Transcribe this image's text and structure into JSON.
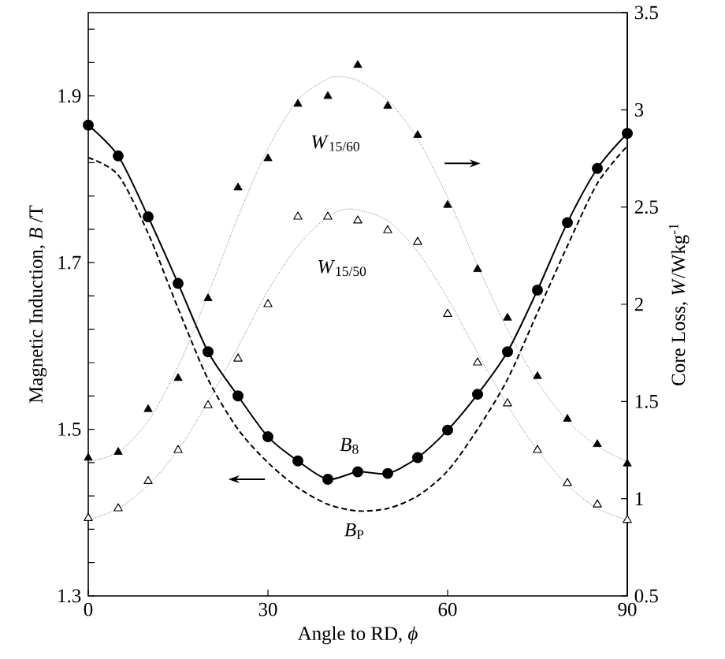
{
  "chart_data": {
    "type": "line",
    "xlabel": "Angle to RD, *ϕ*",
    "ylabel": "Magnetic Induction, *B* /T",
    "y2label": "Core Loss, *W*/Wkg$^{-1}$",
    "x": [
      0,
      5,
      10,
      15,
      20,
      25,
      30,
      35,
      40,
      45,
      50,
      55,
      60,
      65,
      70,
      75,
      80,
      85,
      90
    ],
    "xlim": [
      0,
      90
    ],
    "xticks": [
      0,
      30,
      60,
      90
    ],
    "ylim": [
      1.3,
      2.0
    ],
    "yticks": [
      1.3,
      {
        "value": 1.34,
        "label": null
      },
      {
        "value": 1.38,
        "label": null
      },
      {
        "value": 1.42,
        "label": null
      },
      {
        "value": 1.46,
        "label": null
      },
      1.5,
      {
        "value": 1.54,
        "label": null
      },
      {
        "value": 1.58,
        "label": null
      },
      {
        "value": 1.62,
        "label": null
      },
      {
        "value": 1.66,
        "label": null
      },
      1.7,
      {
        "value": 1.74,
        "label": null
      },
      {
        "value": 1.78,
        "label": null
      },
      {
        "value": 1.82,
        "label": null
      },
      {
        "value": 1.86,
        "label": null
      },
      1.9,
      {
        "value": 1.94,
        "label": null
      },
      {
        "value": 1.98,
        "label": null
      }
    ],
    "y2lim": [
      0.5,
      3.5
    ],
    "y2ticks": [
      0.5,
      1,
      1.5,
      2,
      2.5,
      3,
      3.5
    ],
    "series": [
      {
        "color": "#000000",
        "marker": "circle",
        "line_style": "solid",
        "values": [
          1.865,
          1.828,
          1.755,
          1.675,
          1.593,
          1.54,
          1.491,
          1.462,
          1.44,
          1.449,
          1.447,
          1.466,
          1.499,
          1.542,
          1.593,
          1.667,
          1.748,
          1.813,
          1.855
        ]
      },
      {
        "color": "#000000",
        "marker": "none",
        "line_style": "dashed",
        "values": [
          1.826,
          1.805,
          1.735,
          1.645,
          1.56,
          1.5,
          1.46,
          1.43,
          1.41,
          1.402,
          1.405,
          1.42,
          1.45,
          1.5,
          1.56,
          1.64,
          1.72,
          1.795,
          1.84
        ]
      },
      {
        "type": "scatter",
        "axis": "y2",
        "color": "#000000",
        "marker": "triangle",
        "values": [
          1.21,
          1.24,
          1.46,
          1.62,
          2.03,
          2.6,
          2.75,
          3.03,
          3.07,
          3.23,
          3.02,
          2.87,
          2.51,
          2.18,
          1.93,
          1.63,
          1.41,
          1.28,
          1.18
        ]
      },
      {
        "axis": "y2",
        "color": "#808080",
        "marker": "none",
        "line_style": "dotted",
        "x": [
          0,
          5,
          10,
          15,
          20,
          25,
          30,
          35,
          40,
          42,
          45,
          50,
          55,
          60,
          65,
          70,
          75,
          80,
          85,
          90
        ],
        "values": [
          1.19,
          1.24,
          1.4,
          1.68,
          2.05,
          2.45,
          2.8,
          3.05,
          3.16,
          3.17,
          3.15,
          3.05,
          2.85,
          2.55,
          2.2,
          1.87,
          1.6,
          1.4,
          1.27,
          1.19
        ]
      },
      {
        "type": "scatter",
        "axis": "y2",
        "color": "#ffffff",
        "marker": "triangle",
        "values": [
          0.9,
          0.95,
          1.09,
          1.25,
          1.48,
          1.72,
          2.0,
          2.45,
          2.45,
          2.43,
          2.38,
          2.32,
          1.95,
          1.7,
          1.49,
          1.25,
          1.08,
          0.97,
          0.89
        ]
      },
      {
        "axis": "y2",
        "color": "#808080",
        "marker": "none",
        "line_style": "dotted",
        "x": [
          0,
          5,
          10,
          15,
          20,
          25,
          30,
          35,
          40,
          44,
          50,
          55,
          60,
          65,
          70,
          75,
          80,
          85,
          90
        ],
        "values": [
          0.89,
          0.95,
          1.07,
          1.25,
          1.5,
          1.78,
          2.07,
          2.3,
          2.45,
          2.49,
          2.43,
          2.27,
          2.03,
          1.75,
          1.48,
          1.25,
          1.07,
          0.95,
          0.89
        ]
      }
    ],
    "annotations": [
      "*W*$_{15/60}$",
      "*W*$_{15/50}$",
      "*B*$_{8}$",
      "*B*$_{P}$"
    ]
  }
}
